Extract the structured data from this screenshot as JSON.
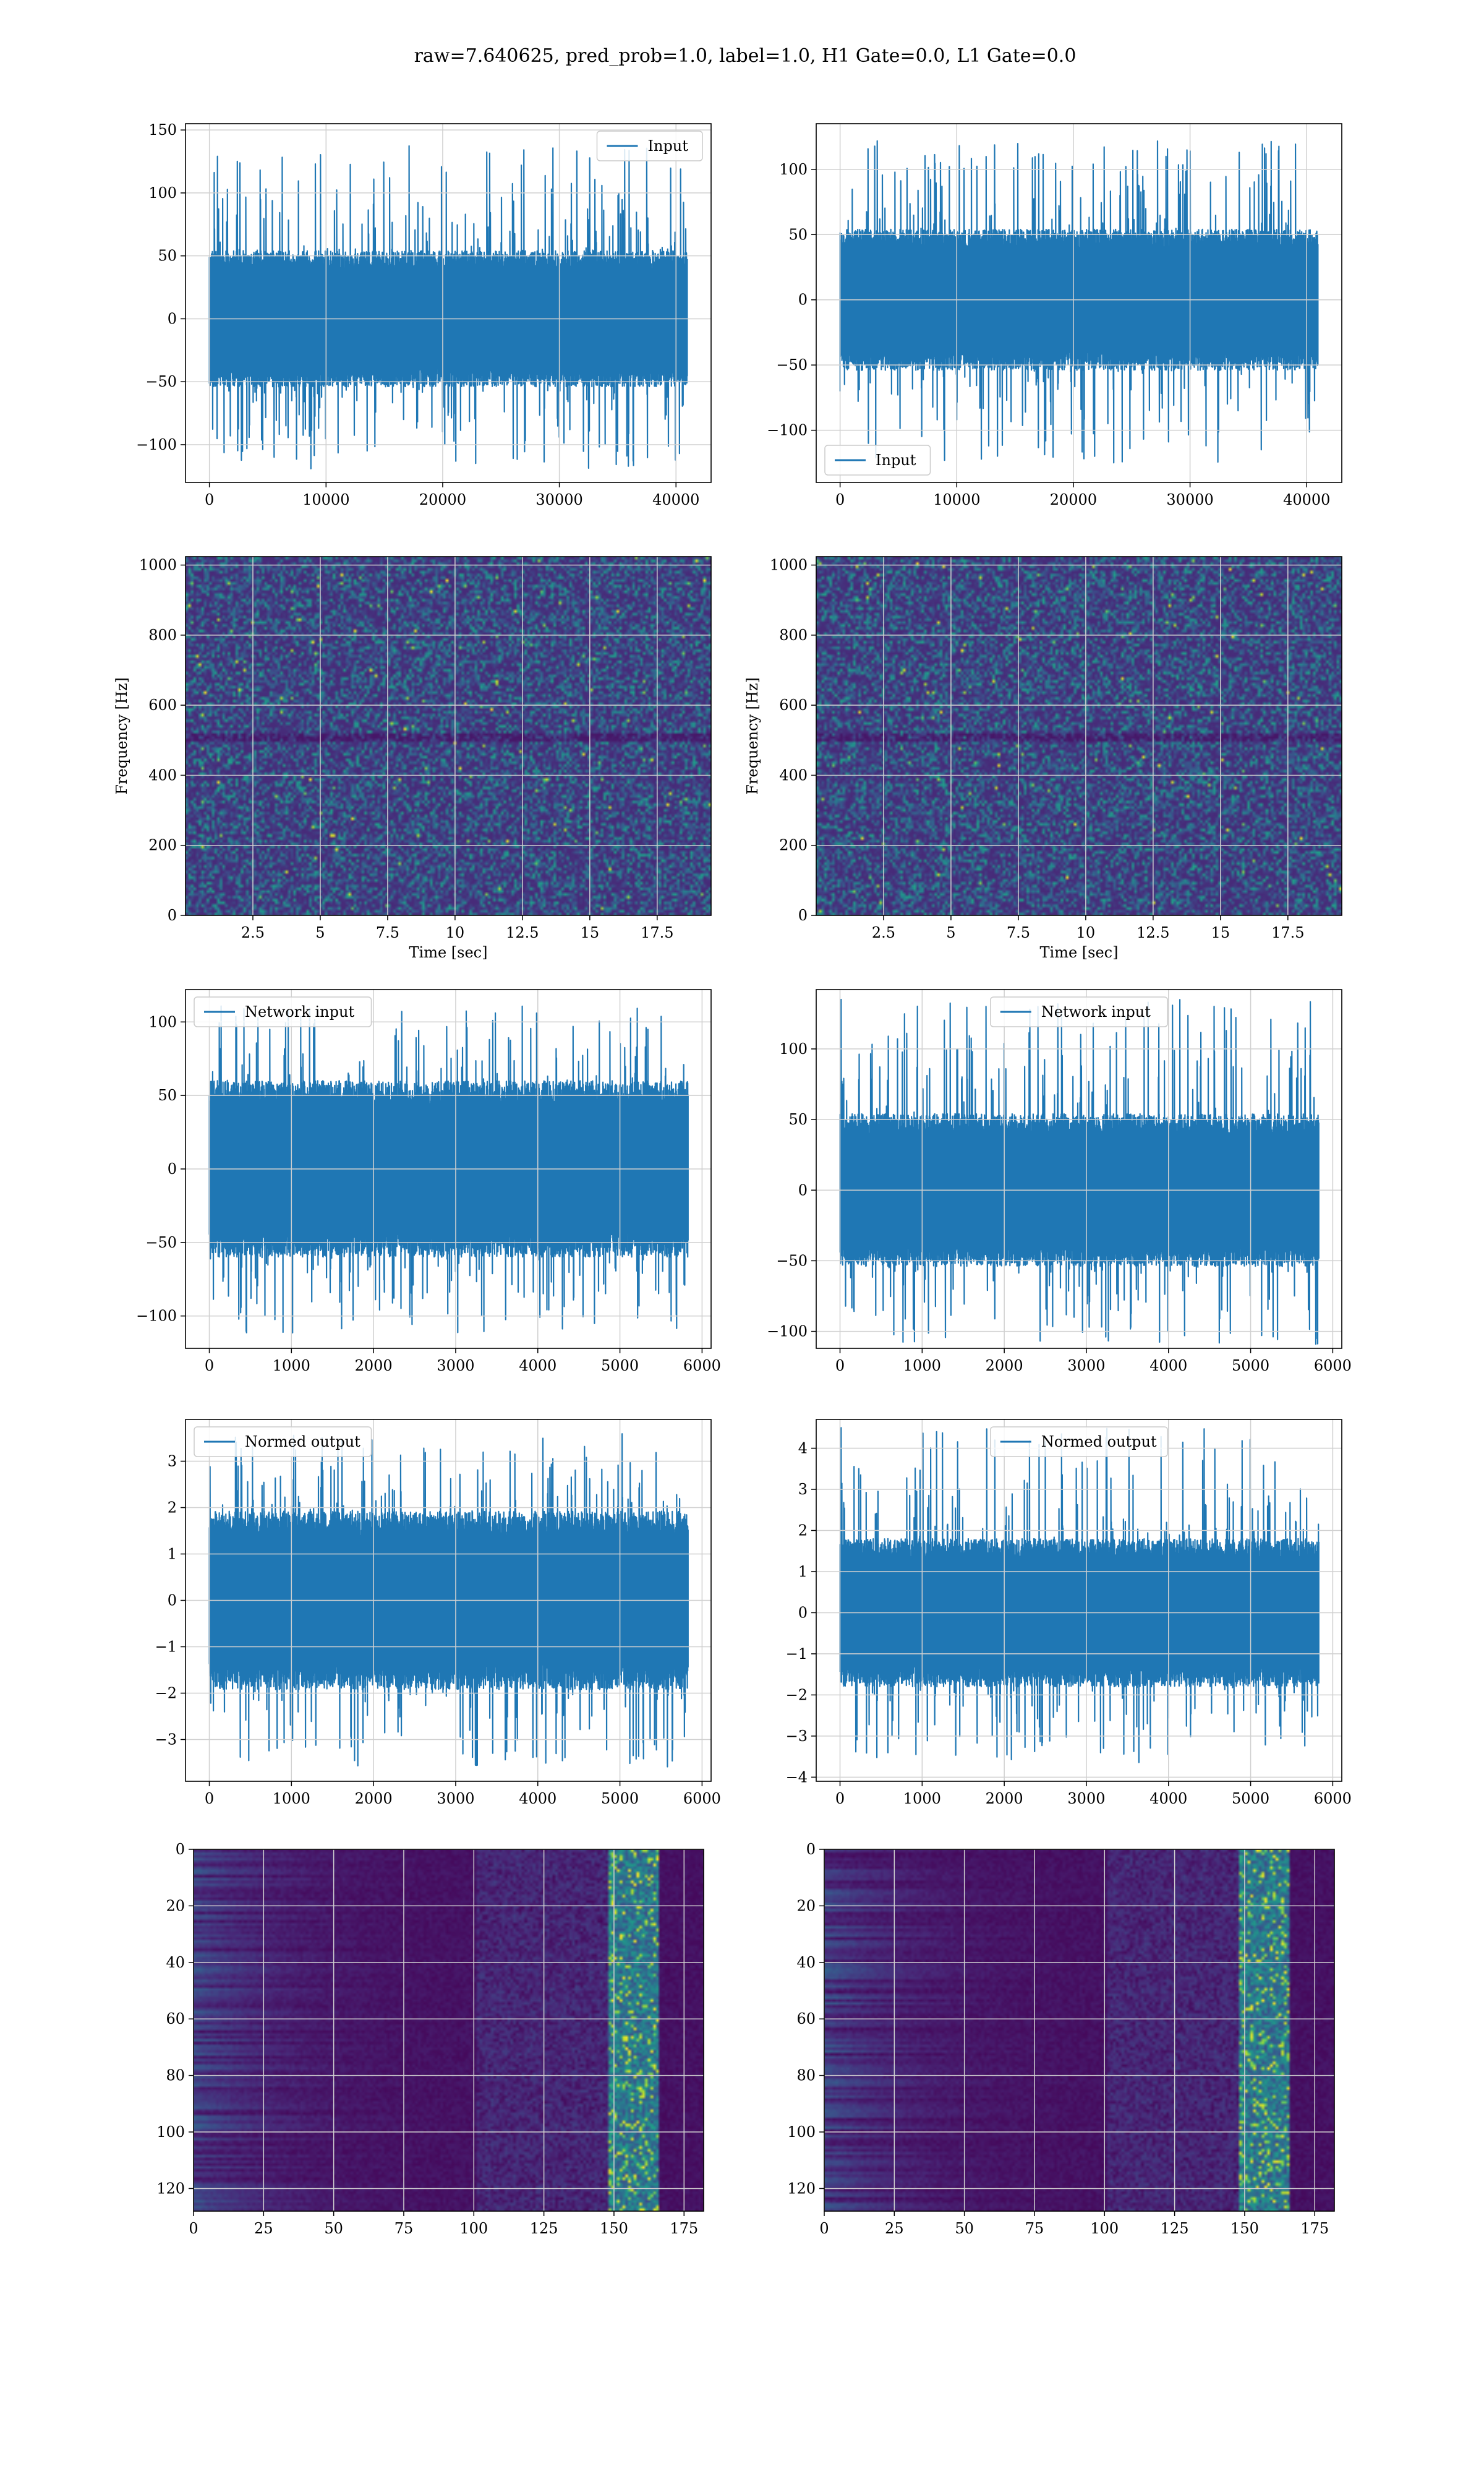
{
  "figure": {
    "suptitle": "raw=7.640625, pred_prob=1.0, label=1.0, H1 Gate=0.0, L1 Gate=0.0"
  },
  "colors": {
    "line": "#1f77b4",
    "grid": "#d0d0d0",
    "viridis_dark": "#440154",
    "viridis_mid": "#2a788e",
    "viridis_bright": "#fde725"
  },
  "chart_data": [
    {
      "id": "r1c1",
      "type": "line",
      "legend": "Input",
      "legend_loc": "upper right",
      "xlim": [
        -2048,
        43008
      ],
      "ylim": [
        -130,
        155
      ],
      "xticks": [
        0,
        10000,
        20000,
        30000,
        40000
      ],
      "yticks": [
        -100,
        -50,
        0,
        50,
        100,
        150
      ],
      "n": 40960,
      "x_range": [
        0,
        40960
      ],
      "band": [
        -45,
        45
      ],
      "spike_range": [
        -120,
        140
      ]
    },
    {
      "id": "r1c2",
      "type": "line",
      "legend": "Input",
      "legend_loc": "lower left",
      "xlim": [
        -2048,
        43008
      ],
      "ylim": [
        -140,
        135
      ],
      "xticks": [
        0,
        10000,
        20000,
        30000,
        40000
      ],
      "yticks": [
        -100,
        -50,
        0,
        50,
        100
      ],
      "n": 40960,
      "x_range": [
        0,
        40960
      ],
      "band": [
        -45,
        45
      ],
      "spike_range": [
        -125,
        122
      ]
    },
    {
      "id": "r2c1",
      "type": "heatmap",
      "xlabel": "Time [sec]",
      "ylabel": "Frequency [Hz]",
      "xlim": [
        0,
        19.5
      ],
      "ylim": [
        0,
        1024
      ],
      "xticks": [
        2.5,
        5.0,
        7.5,
        10.0,
        12.5,
        15.0,
        17.5
      ],
      "yticks": [
        0,
        200,
        400,
        600,
        800,
        1000
      ],
      "description_values": "spectrogram, mostly low power with scattered bright pixels"
    },
    {
      "id": "r2c2",
      "type": "heatmap",
      "xlabel": "Time [sec]",
      "ylabel": "Frequency [Hz]",
      "xlim": [
        0,
        19.5
      ],
      "ylim": [
        0,
        1024
      ],
      "xticks": [
        2.5,
        5.0,
        7.5,
        10.0,
        12.5,
        15.0,
        17.5
      ],
      "yticks": [
        0,
        200,
        400,
        600,
        800,
        1000
      ],
      "description_values": "spectrogram, mostly low power with scattered bright pixels"
    },
    {
      "id": "r3c1",
      "type": "line",
      "legend": "Network input",
      "legend_loc": "upper left",
      "xlim": [
        -290,
        6110
      ],
      "ylim": [
        -122,
        122
      ],
      "xticks": [
        0,
        1000,
        2000,
        3000,
        4000,
        5000,
        6000
      ],
      "yticks": [
        -100,
        -50,
        0,
        50,
        100
      ],
      "n": 5830,
      "x_range": [
        0,
        5830
      ],
      "band": [
        -50,
        50
      ],
      "spike_range": [
        -112,
        112
      ]
    },
    {
      "id": "r3c2",
      "type": "line",
      "legend": "Network input",
      "legend_loc": "upper center",
      "xlim": [
        -290,
        6110
      ],
      "ylim": [
        -112,
        142
      ],
      "xticks": [
        0,
        1000,
        2000,
        3000,
        4000,
        5000,
        6000
      ],
      "yticks": [
        -100,
        -50,
        0,
        50,
        100
      ],
      "n": 5830,
      "x_range": [
        0,
        5830
      ],
      "band": [
        -45,
        45
      ],
      "spike_range": [
        -110,
        135
      ]
    },
    {
      "id": "r4c1",
      "type": "line",
      "legend": "Normed output",
      "legend_loc": "upper left",
      "xlim": [
        -290,
        6110
      ],
      "ylim": [
        -3.9,
        3.9
      ],
      "xticks": [
        0,
        1000,
        2000,
        3000,
        4000,
        5000,
        6000
      ],
      "yticks": [
        -3,
        -2,
        -1,
        0,
        1,
        2,
        3
      ],
      "n": 5830,
      "x_range": [
        0,
        5830
      ],
      "band": [
        -1.6,
        1.6
      ],
      "spike_range": [
        -3.6,
        3.6
      ]
    },
    {
      "id": "r4c2",
      "type": "line",
      "legend": "Normed output",
      "legend_loc": "upper center",
      "xlim": [
        -290,
        6110
      ],
      "ylim": [
        -4.1,
        4.7
      ],
      "xticks": [
        0,
        1000,
        2000,
        3000,
        4000,
        5000,
        6000
      ],
      "yticks": [
        -4,
        -3,
        -2,
        -1,
        0,
        1,
        2,
        3,
        4
      ],
      "n": 5830,
      "x_range": [
        0,
        5830
      ],
      "band": [
        -1.5,
        1.5
      ],
      "spike_range": [
        -3.7,
        4.5
      ]
    },
    {
      "id": "r5c1",
      "type": "heatmap",
      "xlim": [
        0,
        182
      ],
      "ylim": [
        128,
        0
      ],
      "xticks": [
        0,
        25,
        50,
        75,
        100,
        125,
        150,
        175
      ],
      "yticks": [
        0,
        20,
        40,
        60,
        80,
        100,
        120
      ],
      "description_values": "activation map, dark with bright band near columns 150-165"
    },
    {
      "id": "r5c2",
      "type": "heatmap",
      "xlim": [
        0,
        182
      ],
      "ylim": [
        128,
        0
      ],
      "xticks": [
        0,
        25,
        50,
        75,
        100,
        125,
        150,
        175
      ],
      "yticks": [
        0,
        20,
        40,
        60,
        80,
        100,
        120
      ],
      "description_values": "activation map, dark with bright band near columns 150-165"
    }
  ]
}
